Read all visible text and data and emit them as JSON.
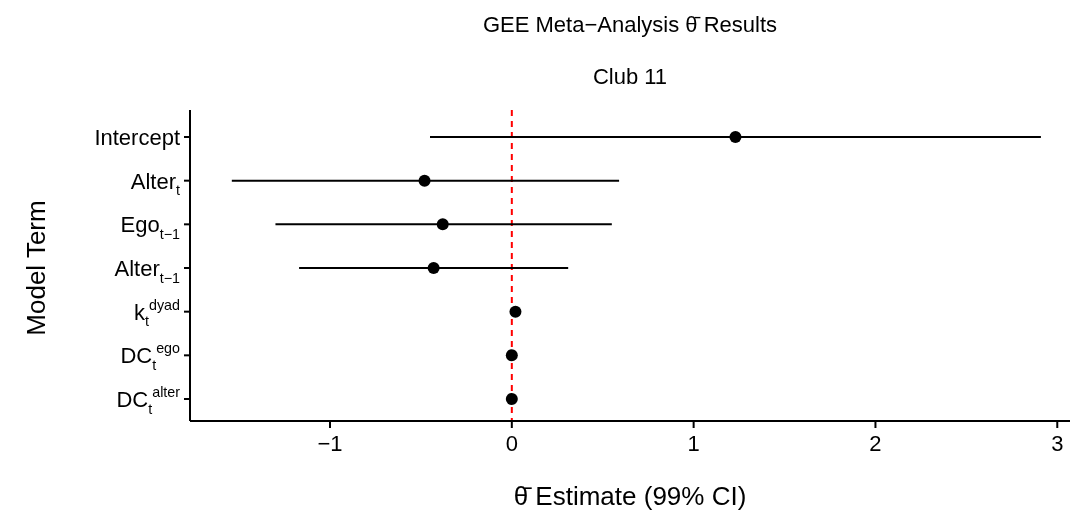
{
  "chart_data": {
    "type": "scatter",
    "orientation": "horizontal",
    "title": "GEE Meta−Analysis θ̄ Results",
    "subtitle": "Club 11",
    "xlabel": "θ̄ Estimate (99% CI)",
    "ylabel": "Model Term",
    "categories": [
      "Intercept",
      "Alter$_{t}$",
      "Ego$_{t−1}$",
      "Alter$_{t−1}$",
      "k$_{t}$$^{dyad}$",
      "DC$_{t}$$^{ego}$",
      "DC$_{t}$$^{alter}$"
    ],
    "series": [
      {
        "color": "#000000",
        "values": [
          1.23,
          -0.48,
          -0.38,
          -0.43,
          0.02,
          0,
          0
        ],
        "errors": [
          [
            -0.45,
            2.91
          ],
          [
            -1.54,
            0.59
          ],
          [
            -1.3,
            0.55
          ],
          [
            -1.17,
            0.31
          ],
          null,
          null,
          null
        ]
      }
    ],
    "marker": "circle",
    "xlim": [
      -1.77,
      3.07
    ],
    "xticks": [
      {
        "value": -1,
        "label": "−1"
      },
      0,
      1,
      2,
      3
    ],
    "grid": false,
    "ref_lines": [
      {
        "axis": "x",
        "value": 0,
        "color": "#ff0000",
        "line_style": "dashed"
      }
    ]
  }
}
